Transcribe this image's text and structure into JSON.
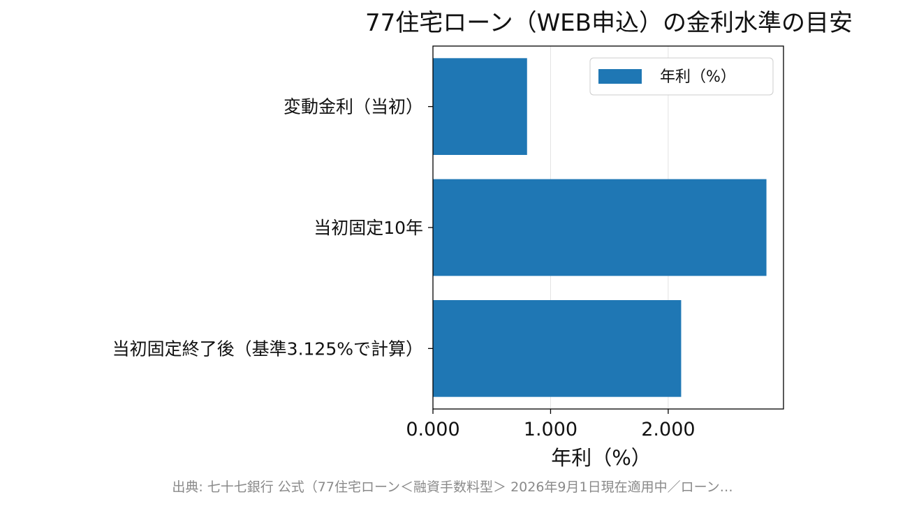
{
  "chart_data": {
    "type": "bar",
    "orientation": "horizontal",
    "title": "77住宅ローン（WEB申込）の金利水準の目安",
    "categories": [
      "変動金利（当初）",
      "当初固定10年",
      "当初固定終了後（基準3.125%で計算）"
    ],
    "series": [
      {
        "name": "年利（%）",
        "values": [
          0.8,
          2.835,
          2.11
        ],
        "color": "#1f77b4"
      }
    ],
    "xlabel": "年利（%）",
    "ylabel": "",
    "xlim": [
      0,
      2.98
    ],
    "xticks": [
      0,
      1,
      2
    ],
    "xtick_labels": [
      "0.000",
      "1.000",
      "2.000"
    ],
    "grid": "x",
    "legend": "upper-right"
  },
  "source_note": "出典: 七十七銀行 公式（77住宅ローン＜融資手数料型＞ 2026年9月1日現在適用中／ローン…"
}
